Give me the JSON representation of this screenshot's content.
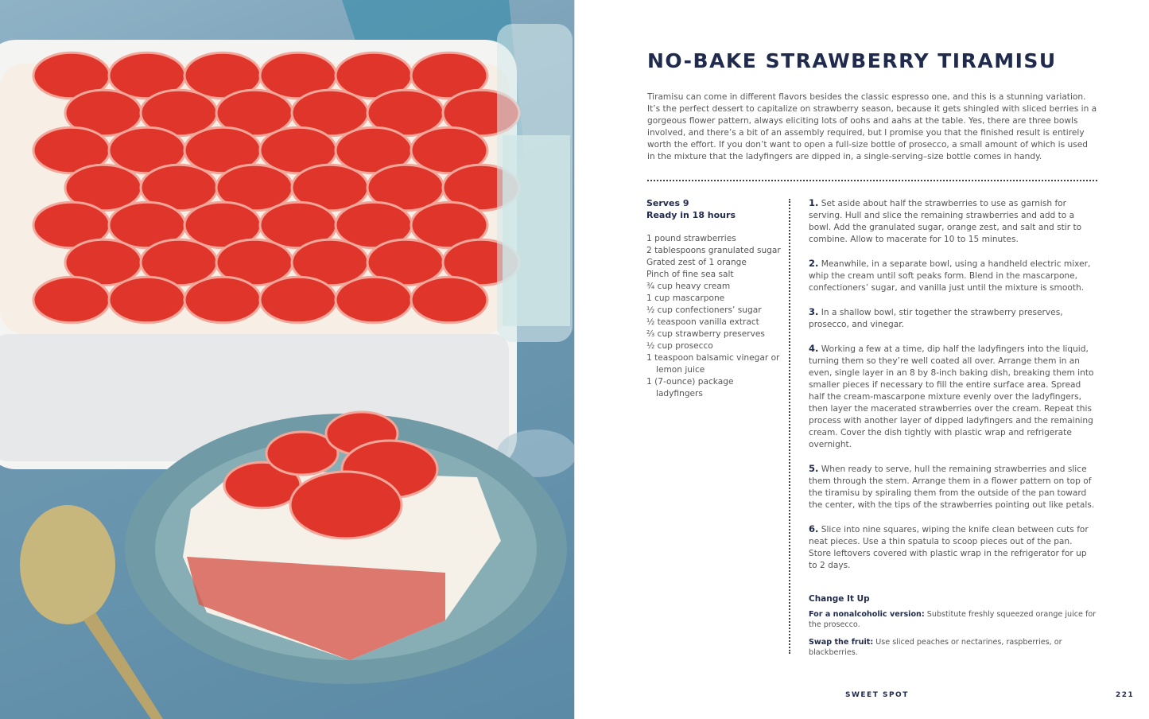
{
  "recipe": {
    "title": "NO-BAKE STRAWBERRY TIRAMISU",
    "intro": "Tiramisu can come in different flavors besides the classic espresso one, and this is a stunning variation. It’s the perfect dessert to capitalize on strawberry season, because it gets shingled with sliced berries in a gorgeous flower pattern, always eliciting lots of oohs and aahs at the table. Yes, there are three bowls involved, and there’s a bit of an assembly required, but I promise you that the finished result is entirely worth the effort. If you don’t want to open a full-size bottle of prosecco, a small amount of which is used in the mixture that the ladyfingers are dipped in, a single-serving–size bottle comes in handy.",
    "serves": "Serves 9",
    "ready": "Ready in 18 hours",
    "ingredients": [
      "1 pound strawberries",
      "2 tablespoons granulated sugar",
      "Grated zest of 1 orange",
      "Pinch of fine sea salt",
      "¾ cup heavy cream",
      "1 cup mascarpone",
      "½ cup confectioners’ sugar",
      "½ teaspoon vanilla extract",
      "⅔ cup strawberry preserves",
      "½ cup prosecco",
      "1 teaspoon balsamic vinegar or lemon juice",
      "1 (7-ounce) package ladyfingers"
    ],
    "steps": [
      {
        "num": "1.",
        "text": "Set aside about half the strawberries to use as garnish for serving. Hull and slice the remaining strawberries and add to a bowl. Add the granulated sugar, orange zest, and salt and stir to combine. Allow to macerate for 10 to 15 minutes."
      },
      {
        "num": "2.",
        "text": "Meanwhile, in a separate bowl, using a handheld electric mixer, whip the cream until soft peaks form. Blend in the mascarpone, confectioners’ sugar, and vanilla just until the mixture is smooth."
      },
      {
        "num": "3.",
        "text": "In a shallow bowl, stir together the strawberry preserves, prosecco, and vinegar."
      },
      {
        "num": "4.",
        "text": "Working a few at a time, dip half the ladyfingers into the liquid, turning them so they’re well coated all over. Arrange them in an even, single layer in an 8 by 8-inch baking dish, breaking them into smaller pieces if necessary to fill the entire surface area. Spread half the cream-mascarpone mixture evenly over the ladyfingers, then layer the macerated strawberries over the cream. Repeat this process with another layer of dipped ladyfingers and the remaining cream. Cover the dish tightly with plastic wrap and refrigerate overnight."
      },
      {
        "num": "5.",
        "text": "When ready to serve, hull the remaining strawberries and slice them through the stem. Arrange them in a flower pattern on top of the tiramisu by spiraling them from the outside of the pan toward the center, with the tips of the strawberries pointing out like petals."
      },
      {
        "num": "6.",
        "text": "Slice into nine squares, wiping the knife clean between cuts for neat pieces. Use a thin spatula to scoop pieces out of the pan. Store leftovers covered with plastic wrap in the refrigerator for up to 2 days."
      }
    ],
    "change_heading": "Change It Up",
    "tips": [
      {
        "label": "For a nonalcoholic version:",
        "text": " Substitute freshly squeezed orange juice for the prosecco."
      },
      {
        "label": "Swap the fruit:",
        "text": " Use sliced peaches or nectarines, raspberries, or blackberries."
      }
    ]
  },
  "footer": {
    "section": "SWEET SPOT",
    "page_number": "221"
  },
  "colors": {
    "heading": "#1f2a4c",
    "body": "#555555",
    "background_photo": "#6e98b0",
    "strawberry": "#e0352b"
  }
}
